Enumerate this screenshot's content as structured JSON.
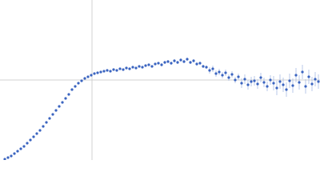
{
  "chart_data": {
    "type": "scatter",
    "x": [
      6,
      10,
      14,
      18,
      22,
      26,
      30,
      34,
      38,
      42,
      46,
      50,
      54,
      58,
      62,
      66,
      70,
      74,
      78,
      82,
      86,
      90,
      94,
      98,
      102,
      106,
      110,
      114,
      118,
      122,
      126,
      130,
      134,
      138,
      142,
      146,
      150,
      154,
      158,
      162,
      166,
      170,
      174,
      178,
      182,
      186,
      190,
      194,
      198,
      202,
      206,
      210,
      214,
      218,
      222,
      226,
      230,
      234,
      238,
      242,
      246,
      250,
      254,
      258,
      262,
      266,
      270,
      274,
      278,
      282,
      286,
      290,
      294,
      298,
      302,
      306,
      310,
      314,
      318,
      322,
      326,
      330,
      334,
      338,
      342,
      346,
      350,
      354,
      358,
      362,
      366,
      370,
      374,
      378,
      382,
      386,
      390,
      394,
      398
    ],
    "values": [
      1,
      3,
      5,
      8,
      11,
      14,
      17,
      21,
      25,
      29,
      33,
      37,
      42,
      47,
      52,
      57,
      62,
      67,
      72,
      77,
      82,
      88,
      92,
      96,
      99,
      102,
      104,
      106,
      108,
      109,
      110,
      111,
      112,
      111,
      113,
      112,
      114,
      113,
      115,
      114,
      116,
      115,
      117,
      116,
      118,
      119,
      117,
      120,
      121,
      119,
      122,
      123,
      121,
      124,
      122,
      125,
      123,
      126,
      122,
      124,
      120,
      121,
      117,
      116,
      112,
      114,
      108,
      110,
      106,
      109,
      103,
      107,
      100,
      104,
      96,
      101,
      94,
      98,
      99,
      95,
      103,
      97,
      92,
      100,
      96,
      90,
      98,
      94,
      88,
      99,
      93,
      106,
      97,
      110,
      92,
      104,
      95,
      101,
      98
    ],
    "errors": [
      1,
      1,
      1,
      1,
      1,
      1,
      1,
      1,
      1,
      1,
      1,
      1,
      1,
      1,
      1,
      1,
      1,
      1,
      1,
      1,
      1,
      1,
      1,
      1,
      1,
      1,
      1,
      1,
      1,
      1,
      1,
      1,
      1,
      1,
      1,
      1,
      1,
      1,
      1,
      1,
      1,
      1,
      1,
      1,
      1,
      1,
      1,
      1,
      1,
      2,
      2,
      2,
      2,
      2,
      2,
      2,
      2,
      2,
      2,
      2,
      2,
      2,
      2,
      2,
      4,
      4,
      4,
      4,
      4,
      4,
      4,
      4,
      4,
      4,
      6,
      6,
      6,
      6,
      6,
      6,
      6,
      6,
      6,
      6,
      9,
      9,
      9,
      9,
      9,
      9,
      9,
      9,
      9,
      9,
      9,
      9,
      9,
      9,
      9
    ],
    "color": "#3a64c0",
    "error_color": "#a9bce4",
    "xlim": [
      0,
      400
    ],
    "ylim": [
      0,
      200
    ],
    "vline": 115,
    "hline": 100
  }
}
